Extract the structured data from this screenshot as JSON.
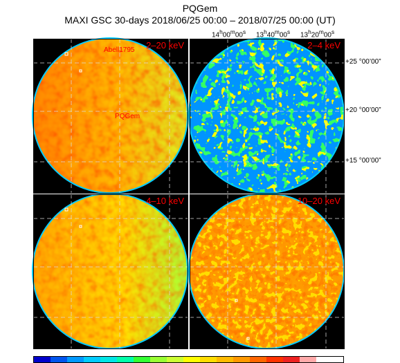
{
  "header": {
    "title": "PQGem",
    "subtitle": "MAXI GSC 30-days 2018/06/25 00:00 – 2018/07/25 00:00 (UT)"
  },
  "axes": {
    "ra_labels": [
      {
        "h": "14",
        "m": "00",
        "s": "00"
      },
      {
        "h": "13",
        "m": "40",
        "s": "00"
      },
      {
        "h": "13",
        "m": "20",
        "s": "00"
      }
    ],
    "dec_labels": [
      "+25 °00’00”",
      "+20 °00’00”",
      "+15 °00’00”"
    ]
  },
  "panels": [
    {
      "band": "2–20 keV",
      "labels": [
        {
          "text": "Abell1795"
        },
        {
          "text": "PQGem"
        }
      ]
    },
    {
      "band": "2–4 keV",
      "labels": []
    },
    {
      "band": "4–10 keV",
      "labels": []
    },
    {
      "band": "10–20 keV",
      "labels": []
    }
  ],
  "colors": {
    "background": "#000000",
    "label": "#ff0000",
    "colorbar": [
      "#0000cc",
      "#0055ee",
      "#0099ff",
      "#00ccff",
      "#00e6e6",
      "#00ffaa",
      "#33ff33",
      "#99ff33",
      "#ccff33",
      "#ffff00",
      "#ffdd00",
      "#ffbb00",
      "#ff9900",
      "#ff6600",
      "#ff3300",
      "#ee2222",
      "#ffaaaa",
      "#ffffff"
    ]
  }
}
